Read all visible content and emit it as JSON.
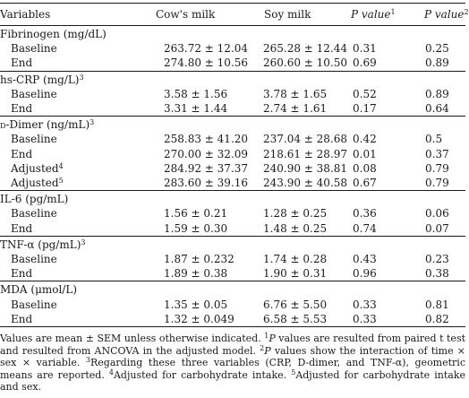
{
  "headers": {
    "variables": "Variables",
    "cows_milk": "Cow's milk",
    "soy_milk": "Soy milk",
    "p_value": "P value",
    "p1_sup": "1",
    "p2_sup": "2"
  },
  "rows": [
    {
      "type": "group",
      "label": "Fibrinogen (mg/dL)"
    },
    {
      "type": "data",
      "label": "Baseline",
      "cow": "263.72 ± 12.04",
      "soy": "265.28 ± 12.44",
      "p1": "0.31",
      "p2": "0.25"
    },
    {
      "type": "data",
      "label": "End",
      "cow": "274.80 ± 10.56",
      "soy": "260.60 ± 10.50",
      "p1": "0.69",
      "p2": "0.89"
    },
    {
      "type": "group",
      "label": "hs-CRP (mg/L)",
      "sup": "3"
    },
    {
      "type": "data",
      "label": "Baseline",
      "cow": "3.58 ± 1.56",
      "soy": "3.78 ± 1.65",
      "p1": "0.52",
      "p2": "0.89"
    },
    {
      "type": "data",
      "label": "End",
      "cow": "3.31 ± 1.44",
      "soy": "2.74 ± 1.61",
      "p1": "0.17",
      "p2": "0.64"
    },
    {
      "type": "group",
      "label": "D-Dimer (ng/mL)",
      "sup": "3"
    },
    {
      "type": "data",
      "label": "Baseline",
      "cow": "258.83 ± 41.20",
      "soy": "237.04 ± 28.68",
      "p1": "0.42",
      "p2": "0.5"
    },
    {
      "type": "data",
      "label": "End",
      "cow": "270.00 ± 32.09",
      "soy": "218.61 ± 28.97",
      "p1": "0.01",
      "p2": "0.37"
    },
    {
      "type": "data",
      "label": "Adjusted",
      "sup": "4",
      "cow": "284.92 ± 37.37",
      "soy": "240.90 ± 38.81",
      "p1": "0.08",
      "p2": "0.79"
    },
    {
      "type": "data",
      "label": "Adjusted",
      "sup": "5",
      "cow": "283.60 ± 39.16",
      "soy": "243.90 ± 40.58",
      "p1": "0.67",
      "p2": "0.79"
    },
    {
      "type": "group",
      "label": "IL-6 (pg/mL)"
    },
    {
      "type": "data",
      "label": "Baseline",
      "cow": "1.56 ± 0.21",
      "soy": "1.28 ± 0.25",
      "p1": "0.36",
      "p2": "0.06"
    },
    {
      "type": "data",
      "label": "End",
      "cow": "1.59 ± 0.30",
      "soy": "1.48 ± 0.25",
      "p1": "0.74",
      "p2": "0.07"
    },
    {
      "type": "group",
      "label": "TNF-α (pg/mL)",
      "sup": "3"
    },
    {
      "type": "data",
      "label": "Baseline",
      "cow": "1.87 ± 0.232",
      "soy": "1.74 ± 0.28",
      "p1": "0.43",
      "p2": "0.23"
    },
    {
      "type": "data",
      "label": "End",
      "cow": "1.89 ± 0.38",
      "soy": "1.90 ± 0.31",
      "p1": "0.96",
      "p2": "0.38"
    },
    {
      "type": "group",
      "label": "MDA (μmol/L)"
    },
    {
      "type": "data",
      "label": "Baseline",
      "cow": "1.35 ± 0.05",
      "soy": "6.76 ± 5.50",
      "p1": "0.33",
      "p2": "0.81"
    },
    {
      "type": "data",
      "label": "End",
      "cow": "1.32 ± 0.049",
      "soy": "6.58 ± 5.53",
      "p1": "0.33",
      "p2": "0.82"
    }
  ],
  "footnote": {
    "intro": "Values are mean ± SEM unless otherwise indicated.",
    "n1_sup": "1",
    "n1_p": "P",
    "n1_text": " values are resulted from paired t test and resulted from ANCOVA in the adjusted model.",
    "n2_sup": "2",
    "n2_p": "P",
    "n2_text": " values show the interaction of time × sex × variable.",
    "n3_sup": "3",
    "n3_a": "Regarding these three variables (CRP, ",
    "n3_sc": "D",
    "n3_b": "-dimer, and TNF-α), geometric means are reported.",
    "n4_sup": "4",
    "n4_text": "Adjusted for carbohydrate intake.",
    "n5_sup": "5",
    "n5_text": "Adjusted for carbohydrate intake and sex."
  }
}
